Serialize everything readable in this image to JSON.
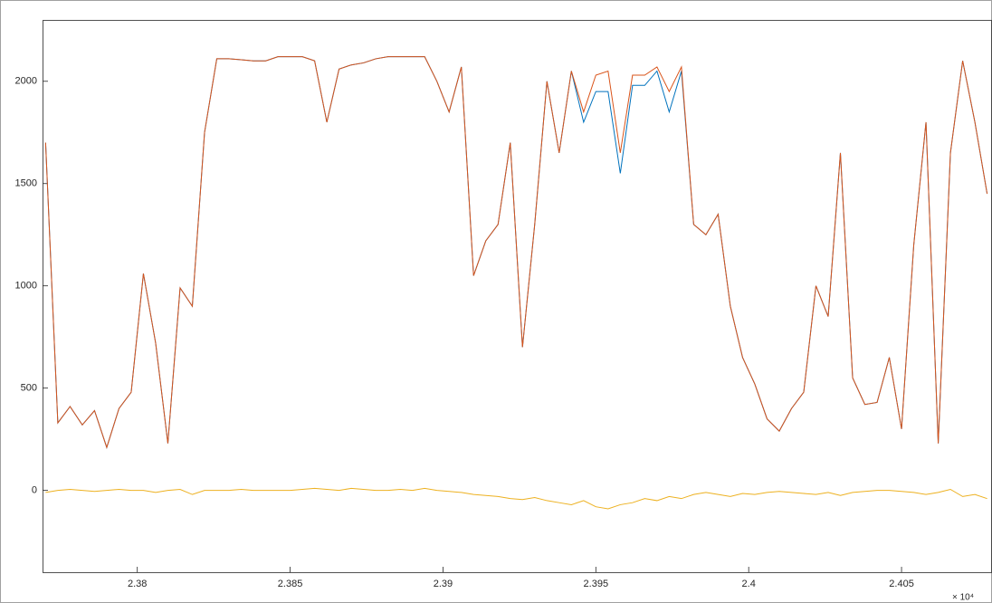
{
  "chart_data": {
    "type": "line",
    "x": [
      23770,
      23774,
      23778,
      23782,
      23786,
      23790,
      23794,
      23798,
      23802,
      23806,
      23810,
      23814,
      23818,
      23822,
      23826,
      23830,
      23834,
      23838,
      23842,
      23846,
      23850,
      23854,
      23858,
      23862,
      23866,
      23870,
      23874,
      23878,
      23882,
      23886,
      23890,
      23894,
      23898,
      23902,
      23906,
      23910,
      23914,
      23918,
      23922,
      23926,
      23930,
      23934,
      23938,
      23942,
      23946,
      23950,
      23954,
      23958,
      23962,
      23966,
      23970,
      23974,
      23978,
      23982,
      23986,
      23990,
      23994,
      23998,
      24002,
      24006,
      24010,
      24014,
      24018,
      24022,
      24026,
      24030,
      24034,
      24038,
      24042,
      24046,
      24050,
      24054,
      24058,
      24062,
      24066,
      24070,
      24074,
      24078
    ],
    "series": [
      {
        "color": "#0072BD",
        "values": [
          1700,
          330,
          410,
          320,
          390,
          210,
          400,
          480,
          1060,
          720,
          230,
          990,
          900,
          1750,
          2110,
          2110,
          2105,
          2100,
          2100,
          2120,
          2120,
          2120,
          2100,
          1800,
          2060,
          2080,
          2090,
          2110,
          2120,
          2120,
          2120,
          2120,
          2000,
          1850,
          2070,
          1050,
          1220,
          1300,
          1700,
          700,
          1300,
          2000,
          1650,
          2050,
          1800,
          1950,
          1950,
          1550,
          1980,
          1980,
          2050,
          1850,
          2050,
          1300,
          1250,
          1350,
          900,
          650,
          520,
          350,
          290,
          400,
          480,
          1000,
          850,
          1650,
          550,
          420,
          430,
          650,
          300,
          1200,
          1800,
          230,
          1650,
          2100,
          1800,
          1450
        ]
      },
      {
        "color": "#D95319",
        "values": [
          1700,
          330,
          410,
          320,
          390,
          210,
          400,
          480,
          1060,
          720,
          230,
          990,
          900,
          1750,
          2110,
          2110,
          2105,
          2100,
          2100,
          2120,
          2120,
          2120,
          2100,
          1800,
          2060,
          2080,
          2090,
          2110,
          2120,
          2120,
          2120,
          2120,
          2000,
          1850,
          2070,
          1050,
          1220,
          1300,
          1700,
          700,
          1300,
          2000,
          1650,
          2050,
          1850,
          2030,
          2050,
          1650,
          2030,
          2030,
          2070,
          1950,
          2070,
          1300,
          1250,
          1350,
          900,
          650,
          520,
          350,
          290,
          400,
          480,
          1000,
          850,
          1650,
          550,
          420,
          430,
          650,
          300,
          1200,
          1800,
          230,
          1650,
          2100,
          1800,
          1450
        ]
      },
      {
        "color": "#EDB120",
        "values": [
          -10,
          0,
          5,
          0,
          -5,
          0,
          5,
          0,
          0,
          -10,
          0,
          5,
          -20,
          0,
          0,
          0,
          5,
          0,
          0,
          0,
          0,
          5,
          10,
          5,
          0,
          10,
          5,
          0,
          0,
          5,
          0,
          10,
          0,
          -5,
          -10,
          -20,
          -25,
          -30,
          -40,
          -45,
          -35,
          -50,
          -60,
          -70,
          -50,
          -80,
          -90,
          -70,
          -60,
          -40,
          -50,
          -30,
          -40,
          -20,
          -10,
          -20,
          -30,
          -15,
          -20,
          -10,
          -5,
          -10,
          -15,
          -20,
          -10,
          -25,
          -10,
          -5,
          0,
          0,
          -5,
          -10,
          -20,
          -10,
          5,
          -30,
          -20,
          -40
        ]
      }
    ],
    "xlim": [
      23769,
      24079
    ],
    "xticks": [
      {
        "value": 23800,
        "label": "2.38"
      },
      {
        "value": 23850,
        "label": "2.385"
      },
      {
        "value": 23900,
        "label": "2.39"
      },
      {
        "value": 23950,
        "label": "2.395"
      },
      {
        "value": 24000,
        "label": "2.4"
      },
      {
        "value": 24050,
        "label": "2.405"
      }
    ],
    "x_exponent": "× 10⁴",
    "ylim": [
      -400,
      2300
    ],
    "yticks": [
      0,
      500,
      1000,
      1500,
      2000
    ],
    "grid": false
  }
}
